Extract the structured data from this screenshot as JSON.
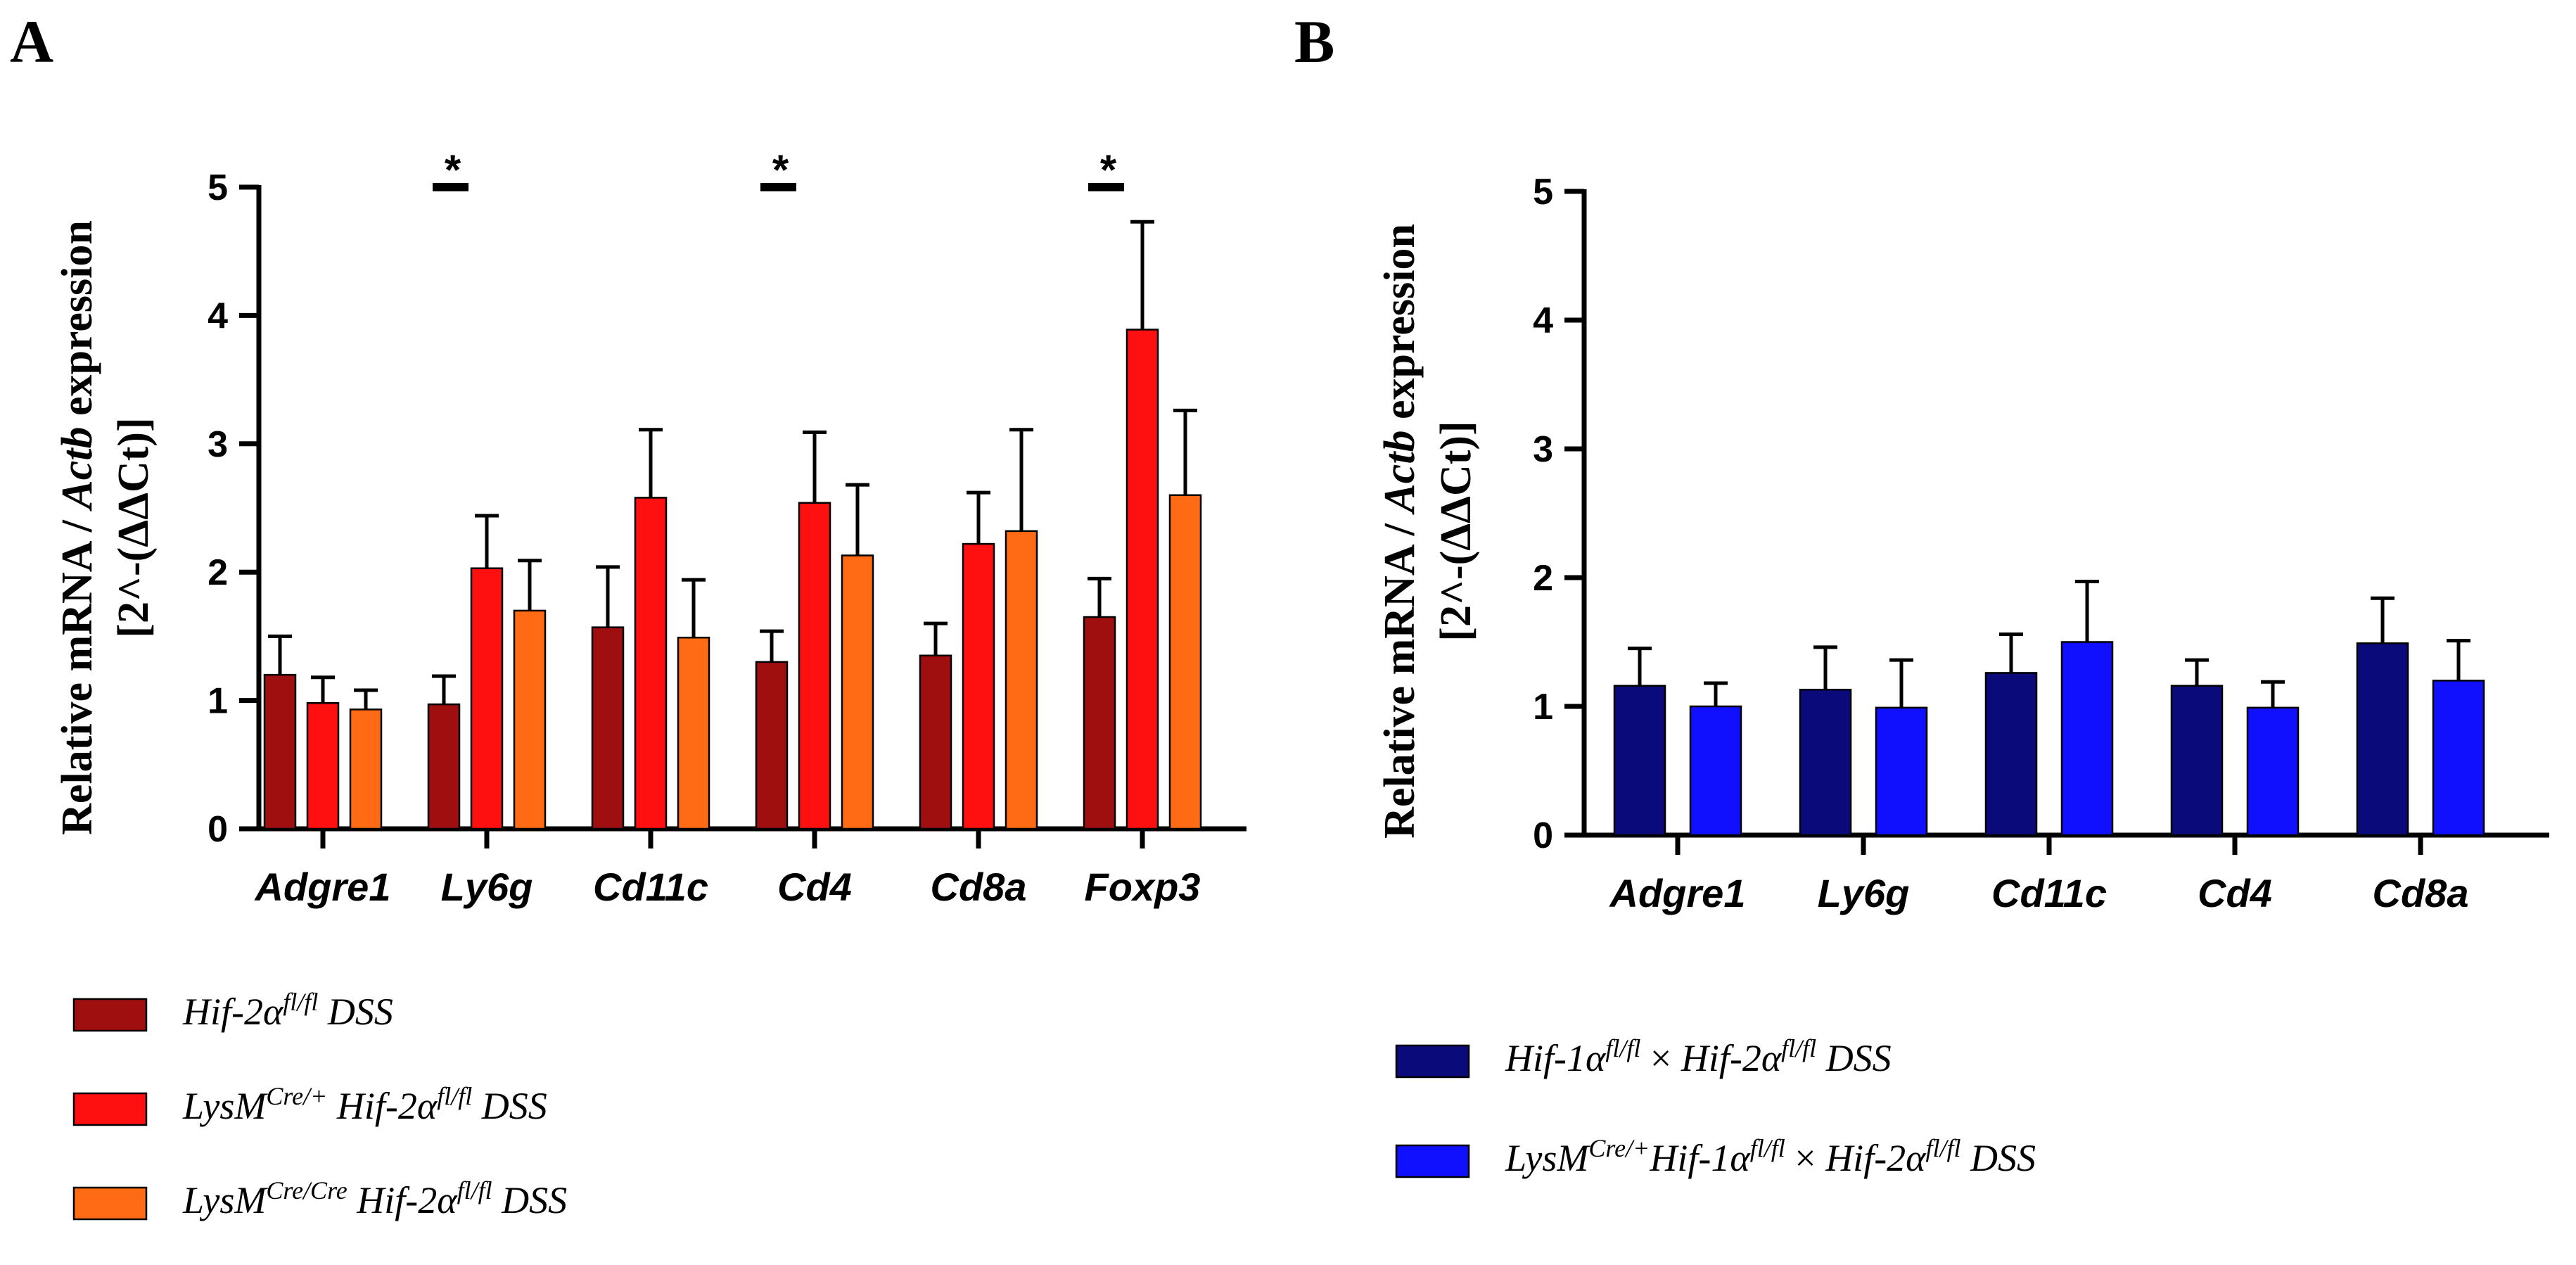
{
  "chart_data": [
    {
      "panel": "A",
      "type": "bar",
      "ylabel_line1": "Relative mRNA / ",
      "ylabel_gene": "Actb",
      "ylabel_line1_end": " expression",
      "ylabel_line2": "[2^-(ΔΔCt)]",
      "ylim": [
        0,
        5
      ],
      "yticks": [
        "0",
        "1",
        "2",
        "3",
        "4",
        "5"
      ],
      "categories": [
        "Adgre1",
        "Ly6g",
        "Cd11c",
        "Cd4",
        "Cd8a",
        "Foxp3"
      ],
      "series": [
        {
          "name": "Hif-2α fl/fl DSS",
          "color": "#a00f0f",
          "values": [
            1.2,
            0.97,
            1.57,
            1.3,
            1.35,
            1.65
          ],
          "errors": [
            0.3,
            0.22,
            0.47,
            0.24,
            0.25,
            0.3
          ]
        },
        {
          "name": "LysM Cre/+ Hif-2α fl/fl DSS",
          "color": "#ff1010",
          "values": [
            0.98,
            2.03,
            2.58,
            2.54,
            2.22,
            3.89
          ],
          "errors": [
            0.2,
            0.41,
            0.53,
            0.55,
            0.4,
            0.84
          ]
        },
        {
          "name": "LysM Cre/Cre Hif-2α fl/fl DSS",
          "color": "#ff6a14",
          "values": [
            0.93,
            1.7,
            1.49,
            2.13,
            2.32,
            2.6
          ],
          "errors": [
            0.15,
            0.39,
            0.45,
            0.55,
            0.79,
            0.66
          ]
        }
      ],
      "significance": [
        {
          "category": "Ly6g",
          "label": "*"
        },
        {
          "category": "Cd4",
          "label": "*"
        },
        {
          "category": "Foxp3",
          "label": "*"
        }
      ],
      "grid": false,
      "legend_position": "bottom-left"
    },
    {
      "panel": "B",
      "type": "bar",
      "ylabel_line1": "Relative mRNA / ",
      "ylabel_gene": "Actb",
      "ylabel_line1_end": " expression",
      "ylabel_line2": "[2^-(ΔΔCt)]",
      "ylim": [
        0,
        5
      ],
      "yticks": [
        "0",
        "1",
        "2",
        "3",
        "4",
        "5"
      ],
      "categories": [
        "Adgre1",
        "Ly6g",
        "Cd11c",
        "Cd4",
        "Cd8a"
      ],
      "series": [
        {
          "name": "Hif-1α fl/fl × Hif-2α fl/fl DSS",
          "color": "#0a0a7a",
          "values": [
            1.16,
            1.13,
            1.26,
            1.16,
            1.49
          ],
          "errors": [
            0.29,
            0.33,
            0.3,
            0.2,
            0.35
          ]
        },
        {
          "name": "LysM Cre/+ Hif-1α fl/fl × Hif-2α fl/fl DSS",
          "color": "#1010ff",
          "values": [
            1.0,
            0.99,
            1.5,
            0.99,
            1.2
          ],
          "errors": [
            0.18,
            0.37,
            0.47,
            0.2,
            0.31
          ]
        }
      ],
      "grid": false,
      "legend_position": "bottom-left"
    }
  ],
  "legend_A": [
    {
      "pre": "",
      "pre_sup": "",
      "main": "Hif-2α",
      "main_sup": "fl/fl",
      "mid": "",
      "mid_sup": "",
      "tail": " DSS"
    },
    {
      "pre": "LysM",
      "pre_sup": "Cre/+",
      "main": " Hif-2α",
      "main_sup": "fl/fl",
      "mid": "",
      "mid_sup": "",
      "tail": " DSS"
    },
    {
      "pre": "LysM",
      "pre_sup": "Cre/Cre",
      "main": " Hif-2α",
      "main_sup": "fl/fl",
      "mid": "",
      "mid_sup": "",
      "tail": " DSS"
    }
  ],
  "legend_B": [
    {
      "pre": "",
      "pre_sup": "",
      "main": "Hif-1α",
      "main_sup": "fl/fl",
      "cross": " × ",
      "mid": "Hif-2α",
      "mid_sup": "fl/fl",
      "tail": " DSS"
    },
    {
      "pre": "LysM",
      "pre_sup": "Cre/+",
      "main": "Hif-1α",
      "main_sup": "fl/fl",
      "cross": " × ",
      "mid": "Hif-2α",
      "mid_sup": "fl/fl",
      "tail": " DSS"
    }
  ]
}
